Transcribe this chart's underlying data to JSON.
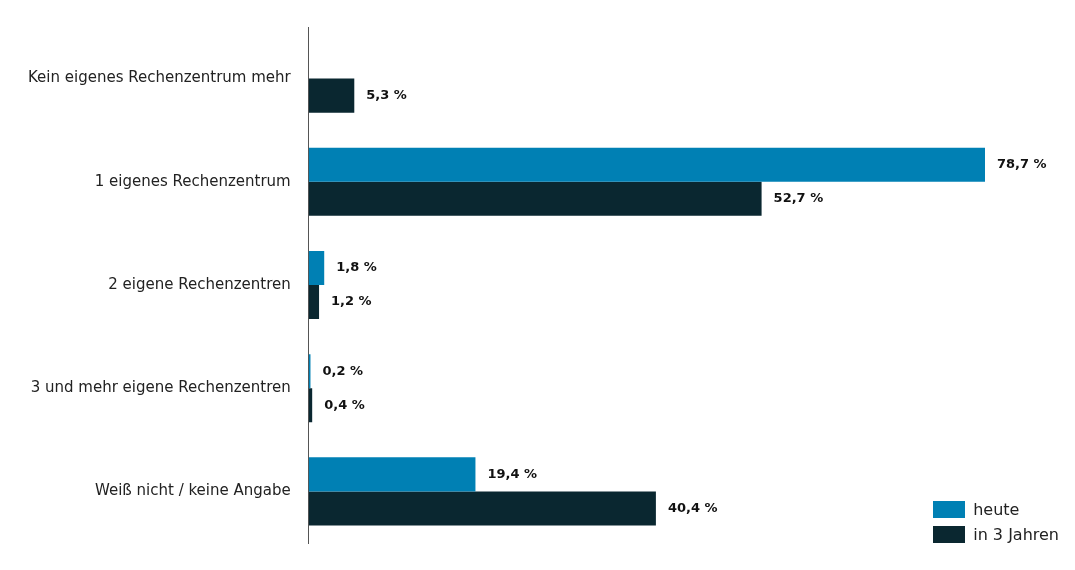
{
  "chart_data": {
    "type": "bar",
    "orientation": "horizontal",
    "categories": [
      "Kein eigenes Rechenzentrum mehr",
      "1 eigenes Rechenzentrum",
      "2 eigene Rechenzentren",
      "3 und mehr eigene Rechenzentren",
      "Weiß nicht / keine Angabe"
    ],
    "series": [
      {
        "name": "heute",
        "color": "#0080b4",
        "values": [
          null,
          78.7,
          1.8,
          0.2,
          19.4
        ],
        "value_labels": [
          null,
          "78,7 %",
          "1,8 %",
          "0,2 %",
          "19,4 %"
        ]
      },
      {
        "name": "in 3 Jahren",
        "color": "#0a2730",
        "values": [
          5.3,
          52.7,
          1.2,
          0.4,
          40.4
        ],
        "value_labels": [
          "5,3 %",
          "52,7 %",
          "1,2 %",
          "0,4 %",
          "40,4 %"
        ]
      }
    ],
    "legend": "bottom right",
    "grid": false,
    "tick_labels": "y"
  }
}
